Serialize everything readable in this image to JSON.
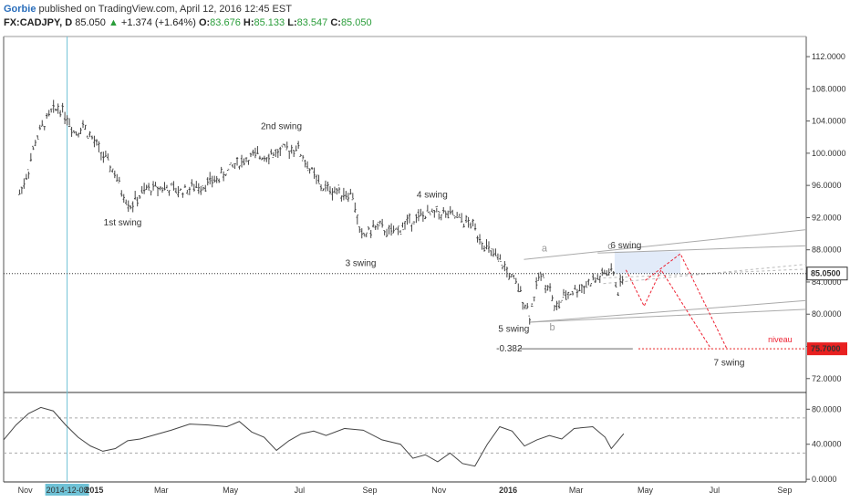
{
  "header": {
    "author": "Gorbie",
    "published": "published on TradingView.com, April 12, 2016 12:45 EST",
    "symbol": "FX:CADJPY, D",
    "last": "85.050",
    "change": "+1.374 (+1.64%)",
    "open_label": "O:",
    "open": "83.676",
    "high_label": "H:",
    "high": "85.133",
    "low_label": "L:",
    "low": "83.547",
    "close_label": "C:",
    "close": "85.050",
    "colors": {
      "author": "#2a6ebb",
      "up": "#2a9d3a",
      "price_line": "#333333",
      "target": "#e82020",
      "projection": "#dfe9f8"
    }
  },
  "chart_data": [
    {
      "type": "candlestick",
      "title": "",
      "xlabel": "",
      "ylabel": "",
      "ylim": [
        70.5,
        114.5
      ],
      "y_ticks": [
        "112.0000",
        "108.0000",
        "104.0000",
        "100.0000",
        "96.0000",
        "92.0000",
        "88.0000",
        "84.0000",
        "80.0000",
        "76.0000",
        "72.0000"
      ],
      "x_ticks": [
        "Nov",
        "2014-12-08",
        "2015",
        "Mar",
        "May",
        "Jul",
        "Sep",
        "Nov",
        "2016",
        "Mar",
        "May",
        "Jul",
        "Sep"
      ],
      "crosshair_date": "2014-12-08",
      "last_price_label": "85.0500",
      "target_label": "75.7000",
      "target_value": 75.7,
      "path": [
        [
          "2014-10-27",
          95.0
        ],
        [
          "2014-11-03",
          97.5
        ],
        [
          "2014-11-10",
          101.5
        ],
        [
          "2014-11-17",
          103.5
        ],
        [
          "2014-11-24",
          105.0
        ],
        [
          "2014-12-01",
          105.8
        ],
        [
          "2014-12-08",
          104.5
        ],
        [
          "2014-12-15",
          102.5
        ],
        [
          "2014-12-22",
          103.5
        ],
        [
          "2015-01-05",
          100.5
        ],
        [
          "2015-01-12",
          99.0
        ],
        [
          "2015-01-19",
          97.5
        ],
        [
          "2015-01-26",
          95.0
        ],
        [
          "2015-02-02",
          93.5
        ],
        [
          "2015-02-09",
          94.5
        ],
        [
          "2015-02-16",
          95.5
        ],
        [
          "2015-03-02",
          95.8
        ],
        [
          "2015-03-16",
          95.3
        ],
        [
          "2015-04-06",
          96.0
        ],
        [
          "2015-04-20",
          96.8
        ],
        [
          "2015-05-04",
          98.5
        ],
        [
          "2015-05-18",
          99.5
        ],
        [
          "2015-06-01",
          99.8
        ],
        [
          "2015-06-15",
          100.2
        ],
        [
          "2015-06-29",
          100.8
        ],
        [
          "2015-07-06",
          99.0
        ],
        [
          "2015-07-20",
          95.8
        ],
        [
          "2015-08-03",
          95.3
        ],
        [
          "2015-08-17",
          94.8
        ],
        [
          "2015-08-24",
          89.5
        ],
        [
          "2015-09-07",
          91.0
        ],
        [
          "2015-09-21",
          90.0
        ],
        [
          "2015-10-05",
          91.5
        ],
        [
          "2015-10-19",
          92.3
        ],
        [
          "2015-11-02",
          92.6
        ],
        [
          "2015-11-16",
          92.0
        ],
        [
          "2015-12-01",
          91.0
        ],
        [
          "2015-12-14",
          88.0
        ],
        [
          "2015-12-28",
          86.0
        ],
        [
          "2016-01-11",
          83.0
        ],
        [
          "2016-01-20",
          80.0
        ],
        [
          "2016-01-29",
          85.0
        ],
        [
          "2016-02-08",
          83.0
        ],
        [
          "2016-02-11",
          80.5
        ],
        [
          "2016-02-22",
          82.5
        ],
        [
          "2016-03-07",
          83.5
        ],
        [
          "2016-03-21",
          84.5
        ],
        [
          "2016-04-01",
          85.5
        ],
        [
          "2016-04-07",
          83.0
        ],
        [
          "2016-04-12",
          85.05
        ]
      ],
      "swing_labels": [
        {
          "text": "1st swing",
          "date": "2015-01-26",
          "value": 91.0
        },
        {
          "text": "2nd swing",
          "date": "2015-06-15",
          "value": 103.0
        },
        {
          "text": "3 swing",
          "date": "2015-08-24",
          "value": 86.0
        },
        {
          "text": "4 swing",
          "date": "2015-10-26",
          "value": 94.5
        },
        {
          "text": "5 swing",
          "date": "2016-01-06",
          "value": 77.8
        },
        {
          "text": "6 swing",
          "date": "2016-04-14",
          "value": 88.2
        },
        {
          "text": "7 swing",
          "date": "2016-07-14",
          "value": 73.6
        }
      ],
      "wave_labels": [
        {
          "text": "a",
          "date": "2016-02-02",
          "value": 87.8
        },
        {
          "text": "b",
          "date": "2016-02-09",
          "value": 78.0
        },
        {
          "text": "c",
          "date": "2016-03-31",
          "value": 88.1
        }
      ],
      "fib_label": "-0.382",
      "niveau_label": "niveau"
    },
    {
      "type": "line",
      "title": "",
      "ylim": [
        -3,
        97
      ],
      "y_ticks": [
        "80.0000",
        "40.0000",
        "0.0000"
      ],
      "levels": [
        70,
        30
      ],
      "path": [
        [
          0,
          45
        ],
        [
          0.02,
          62
        ],
        [
          0.04,
          75
        ],
        [
          0.06,
          82
        ],
        [
          0.08,
          78
        ],
        [
          0.1,
          62
        ],
        [
          0.12,
          48
        ],
        [
          0.14,
          38
        ],
        [
          0.16,
          32
        ],
        [
          0.18,
          35
        ],
        [
          0.2,
          44
        ],
        [
          0.22,
          46
        ],
        [
          0.24,
          50
        ],
        [
          0.27,
          56
        ],
        [
          0.3,
          63
        ],
        [
          0.33,
          62
        ],
        [
          0.36,
          60
        ],
        [
          0.38,
          66
        ],
        [
          0.4,
          54
        ],
        [
          0.42,
          48
        ],
        [
          0.44,
          33
        ],
        [
          0.46,
          44
        ],
        [
          0.48,
          52
        ],
        [
          0.5,
          55
        ],
        [
          0.52,
          50
        ],
        [
          0.55,
          58
        ],
        [
          0.58,
          56
        ],
        [
          0.61,
          45
        ],
        [
          0.64,
          40
        ],
        [
          0.66,
          24
        ],
        [
          0.68,
          28
        ],
        [
          0.7,
          20
        ],
        [
          0.72,
          30
        ],
        [
          0.74,
          18
        ],
        [
          0.76,
          15
        ],
        [
          0.78,
          40
        ],
        [
          0.8,
          60
        ],
        [
          0.82,
          55
        ],
        [
          0.84,
          38
        ],
        [
          0.86,
          45
        ],
        [
          0.88,
          50
        ],
        [
          0.9,
          46
        ],
        [
          0.92,
          58
        ],
        [
          0.95,
          60
        ],
        [
          0.97,
          48
        ],
        [
          0.98,
          35
        ],
        [
          1.0,
          52
        ]
      ]
    }
  ]
}
